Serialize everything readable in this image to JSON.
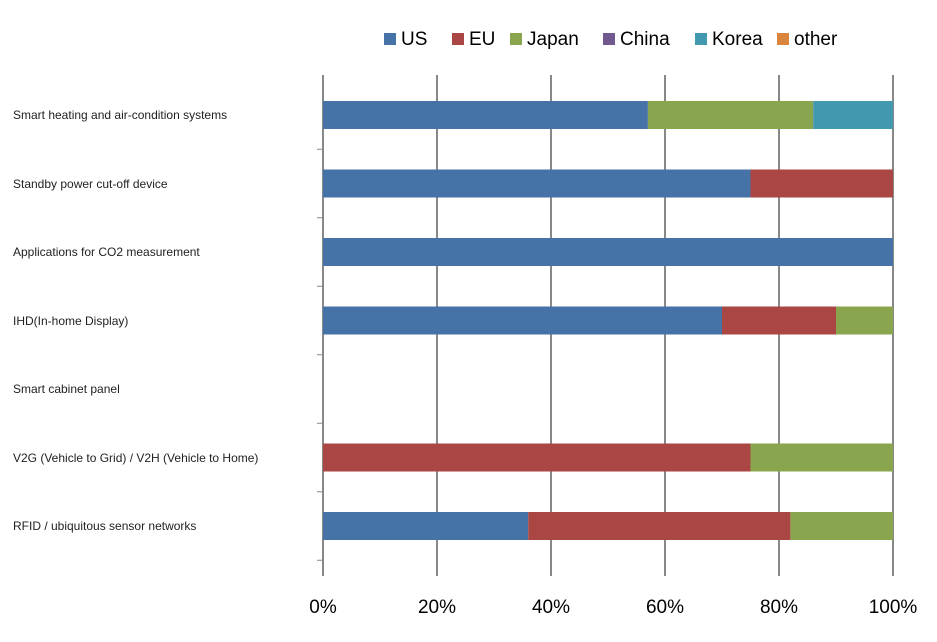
{
  "chart_data": {
    "type": "stacked-bar-horizontal",
    "categories": [
      "Smart heating and air-condition systems",
      "Standby power cut-off device",
      "Applications for CO2 measurement",
      "IHD(In-home Display)",
      "Smart cabinet panel",
      "V2G (Vehicle to Grid) / V2H (Vehicle  to Home)",
      "RFID / ubiquitous sensor networks"
    ],
    "series": [
      {
        "name": "US",
        "color": "#4572a7",
        "values": [
          57,
          75,
          100,
          70,
          0,
          0,
          36
        ]
      },
      {
        "name": "EU",
        "color": "#aa4643",
        "values": [
          0,
          25,
          0,
          20,
          0,
          75,
          46
        ]
      },
      {
        "name": "Japan",
        "color": "#89a54e",
        "values": [
          29,
          0,
          0,
          10,
          0,
          25,
          18
        ]
      },
      {
        "name": "China",
        "color": "#71588f",
        "values": [
          0,
          0,
          0,
          0,
          0,
          0,
          0
        ]
      },
      {
        "name": "Korea",
        "color": "#4198af",
        "values": [
          14,
          0,
          0,
          0,
          0,
          0,
          0
        ]
      },
      {
        "name": "other",
        "color": "#db843d",
        "values": [
          0,
          0,
          0,
          0,
          0,
          0,
          0
        ]
      }
    ],
    "xlim": [
      0,
      100
    ],
    "xticks": [
      {
        "value": 0,
        "label": "0%"
      },
      {
        "value": 20,
        "label": "20%"
      },
      {
        "value": 40,
        "label": "40%"
      },
      {
        "value": 60,
        "label": "60%"
      },
      {
        "value": 80,
        "label": "80%"
      },
      {
        "value": 100,
        "label": "100%"
      }
    ],
    "grid": true,
    "legend": "top"
  }
}
